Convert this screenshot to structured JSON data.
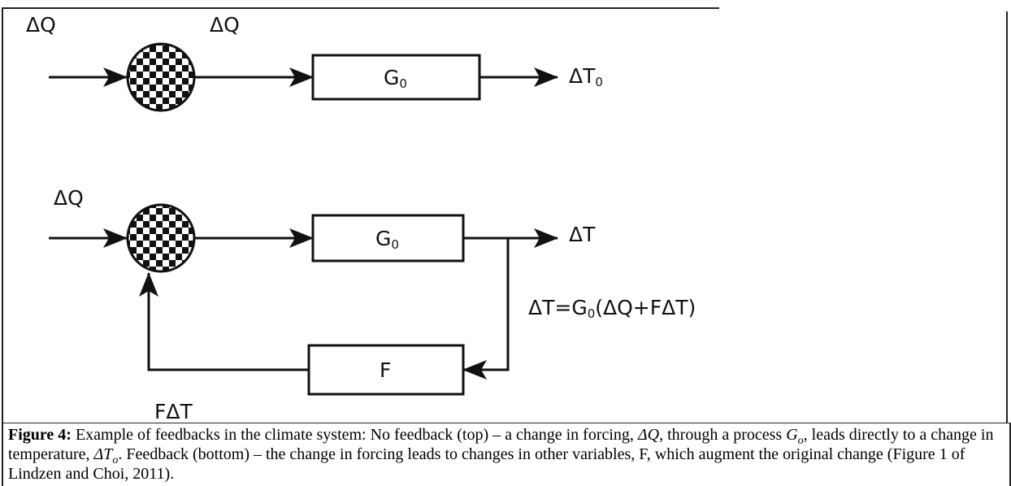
{
  "diagram": {
    "top": {
      "input_label": "ΔQ",
      "mid_label": "ΔQ",
      "process": {
        "main": "G",
        "sub": "0"
      },
      "output": {
        "main": "ΔT",
        "sub": "0"
      }
    },
    "bottom": {
      "input_label": "ΔQ",
      "process": {
        "main": "G",
        "sub": "0"
      },
      "output": "ΔT",
      "feedback": "F",
      "feedback_label": "FΔT",
      "equation": {
        "before": "ΔT=G",
        "sub": "0",
        "after": "(ΔQ+FΔT)"
      }
    }
  },
  "caption": [
    {
      "text": "Figure 4:",
      "style": "bold"
    },
    {
      "text": " Example of feedbacks in the climate system: No feedback (top) – a change in forcing, ",
      "style": "normal"
    },
    {
      "text": "ΔQ",
      "style": "italic"
    },
    {
      "text": ", through a process ",
      "style": "normal"
    },
    {
      "text": "G",
      "style": "italic"
    },
    {
      "text": "o",
      "style": "italic-sub"
    },
    {
      "text": ", leads directly to a change in temperature, ",
      "style": "normal"
    },
    {
      "text": "ΔT",
      "style": "italic"
    },
    {
      "text": "o",
      "style": "italic-sub"
    },
    {
      "text": ". Feedback (bottom) – the change in forcing leads to changes in other variables, F, which augment the original change (Figure 1 of Lindzen and Choi, 2011).",
      "style": "normal"
    }
  ]
}
